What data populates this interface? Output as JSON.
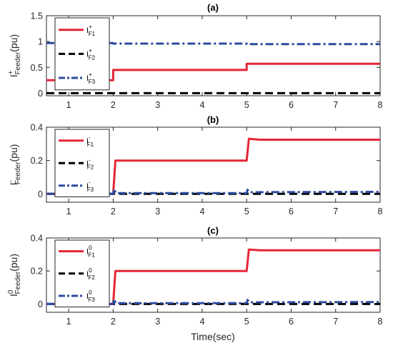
{
  "chart_data": [
    {
      "type": "line",
      "title": "(a)",
      "ylabel": {
        "base": "I",
        "sup": "+",
        "sub": "Feeder",
        "unit": "(pu)"
      },
      "xlim": [
        0.5,
        8
      ],
      "ylim": [
        -0.05,
        1.5
      ],
      "xticks": [
        "1",
        "2",
        "3",
        "4",
        "5",
        "6",
        "7",
        "8"
      ],
      "yticks": [
        "0",
        "0.5",
        "1",
        "1.5"
      ],
      "grid": false,
      "legend_position": "top-left",
      "series": [
        {
          "name": "I+F1",
          "label_base": "I",
          "label_sup": "+",
          "label_sub": "F1",
          "color": "#e32636",
          "style": "solid",
          "x": [
            0.5,
            2.0,
            2.0,
            5.0,
            5.0,
            8.0
          ],
          "y": [
            0.25,
            0.25,
            0.45,
            0.45,
            0.57,
            0.57
          ]
        },
        {
          "name": "I+F2",
          "label_base": "I",
          "label_sup": "+",
          "label_sub": "F2",
          "color": "#000000",
          "style": "dashed",
          "x": [
            0.5,
            8.0
          ],
          "y": [
            0.0,
            0.0
          ]
        },
        {
          "name": "I+F3",
          "label_base": "I",
          "label_sup": "+",
          "label_sub": "F3",
          "color": "#2e4b9e",
          "style": "dashdot",
          "x": [
            0.5,
            2.0,
            2.0,
            5.0,
            5.0,
            8.0
          ],
          "y": [
            0.97,
            0.97,
            0.96,
            0.96,
            0.95,
            0.95
          ]
        }
      ]
    },
    {
      "type": "line",
      "title": "(b)",
      "ylabel": {
        "base": "I",
        "sup": "-",
        "sub": "Feeder",
        "unit": "(pu)"
      },
      "xlim": [
        0.5,
        8
      ],
      "ylim": [
        -0.05,
        0.4
      ],
      "xticks": [
        "1",
        "2",
        "3",
        "4",
        "5",
        "6",
        "7",
        "8"
      ],
      "yticks": [
        "0",
        "0.2",
        "0.4"
      ],
      "grid": false,
      "legend_position": "top-left",
      "series": [
        {
          "name": "I-F1",
          "label_base": "I",
          "label_sup": "-",
          "label_sub": "F1",
          "color": "#e32636",
          "style": "solid",
          "x": [
            0.5,
            2.0,
            2.05,
            5.0,
            5.05,
            5.3,
            8.0
          ],
          "y": [
            0.0,
            0.0,
            0.2,
            0.2,
            0.33,
            0.325,
            0.325
          ]
        },
        {
          "name": "I-F2",
          "label_base": "I",
          "label_sup": "-",
          "label_sub": "F2",
          "color": "#000000",
          "style": "dashed",
          "x": [
            0.5,
            8.0
          ],
          "y": [
            0.0,
            0.0
          ]
        },
        {
          "name": "I-F3",
          "label_base": "I",
          "label_sup": "-",
          "label_sub": "F3",
          "color": "#2e4b9e",
          "style": "dashdot",
          "x": [
            0.5,
            2.0,
            2.02,
            2.06,
            5.0,
            5.02,
            5.06,
            8.0
          ],
          "y": [
            0.0,
            0.0,
            0.03,
            0.005,
            0.005,
            0.025,
            0.01,
            0.012
          ]
        }
      ]
    },
    {
      "type": "line",
      "title": "(c)",
      "ylabel": {
        "base": "I",
        "sup": "0",
        "sub": "Feeder",
        "unit": "(pu)"
      },
      "xlabel": "Time(sec)",
      "xlim": [
        0.5,
        8
      ],
      "ylim": [
        -0.05,
        0.4
      ],
      "xticks": [
        "1",
        "2",
        "3",
        "4",
        "5",
        "6",
        "7",
        "8"
      ],
      "yticks": [
        "0",
        "0.2",
        "0.4"
      ],
      "grid": false,
      "legend_position": "top-left",
      "series": [
        {
          "name": "I0F1",
          "label_base": "I",
          "label_sup": "0",
          "label_sub": "F1",
          "color": "#e32636",
          "style": "solid",
          "x": [
            0.5,
            2.0,
            2.05,
            5.0,
            5.05,
            5.3,
            8.0
          ],
          "y": [
            0.0,
            0.0,
            0.2,
            0.2,
            0.33,
            0.325,
            0.325
          ]
        },
        {
          "name": "I0F2",
          "label_base": "I",
          "label_sup": "0",
          "label_sub": "F2",
          "color": "#000000",
          "style": "dashed",
          "x": [
            0.5,
            8.0
          ],
          "y": [
            0.0,
            0.0
          ]
        },
        {
          "name": "I0F3",
          "label_base": "I",
          "label_sup": "0",
          "label_sub": "F3",
          "color": "#2e4b9e",
          "style": "dashdot",
          "x": [
            0.5,
            2.0,
            2.02,
            2.06,
            5.0,
            5.02,
            5.06,
            8.0
          ],
          "y": [
            0.0,
            0.0,
            0.03,
            0.005,
            0.005,
            0.025,
            0.01,
            0.012
          ]
        }
      ]
    }
  ]
}
